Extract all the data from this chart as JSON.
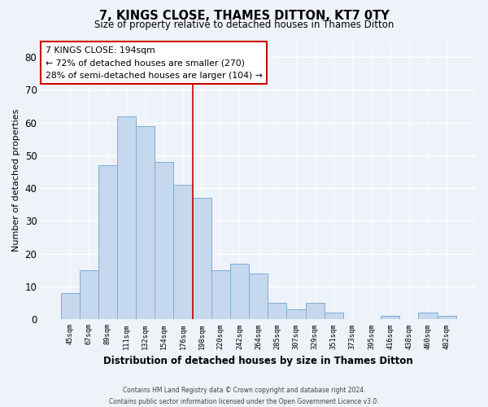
{
  "title": "7, KINGS CLOSE, THAMES DITTON, KT7 0TY",
  "subtitle": "Size of property relative to detached houses in Thames Ditton",
  "xlabel": "Distribution of detached houses by size in Thames Ditton",
  "ylabel": "Number of detached properties",
  "bar_labels": [
    "45sqm",
    "67sqm",
    "89sqm",
    "111sqm",
    "132sqm",
    "154sqm",
    "176sqm",
    "198sqm",
    "220sqm",
    "242sqm",
    "264sqm",
    "285sqm",
    "307sqm",
    "329sqm",
    "351sqm",
    "373sqm",
    "395sqm",
    "416sqm",
    "438sqm",
    "460sqm",
    "482sqm"
  ],
  "bar_values": [
    8,
    15,
    47,
    62,
    59,
    48,
    41,
    37,
    15,
    17,
    14,
    5,
    3,
    5,
    2,
    0,
    0,
    1,
    0,
    2,
    1
  ],
  "bar_color": "#c5d8ee",
  "bar_edge_color": "#7aafd4",
  "ylim": [
    0,
    85
  ],
  "yticks": [
    0,
    10,
    20,
    30,
    40,
    50,
    60,
    70,
    80
  ],
  "vline_index": 7,
  "vline_color": "#cc0000",
  "annotation_title": "7 KINGS CLOSE: 194sqm",
  "annotation_line1": "← 72% of detached houses are smaller (270)",
  "annotation_line2": "28% of semi-detached houses are larger (104) →",
  "annotation_box_color": "#ffffff",
  "annotation_box_edge": "#cc0000",
  "footer1": "Contains HM Land Registry data © Crown copyright and database right 2024.",
  "footer2": "Contains public sector information licensed under the Open Government Licence v3.0.",
  "bg_color": "#eef2f9",
  "grid_color": "#ffffff"
}
